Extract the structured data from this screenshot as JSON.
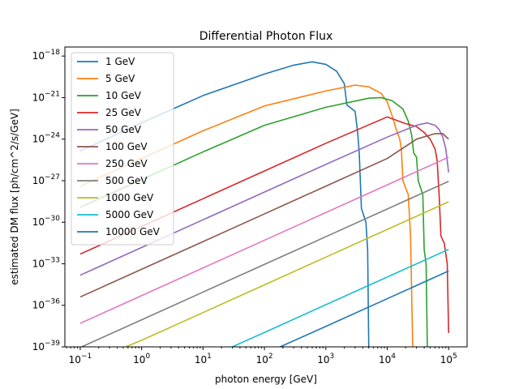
{
  "chart_data": {
    "type": "line",
    "title": "Differential Photon Flux",
    "xlabel": "photon energy [GeV]",
    "ylabel": "estimated DM flux [ph/cm^2/s/GeV]",
    "xscale": "log",
    "yscale": "log",
    "xlim": [
      0.0562,
      200000
    ],
    "ylim": [
      1e-39,
      4.5e-18
    ],
    "grid": false,
    "legend_position": "top-left",
    "x_ticks": [
      {
        "value": 0.1,
        "base": "10",
        "exp": "−1"
      },
      {
        "value": 1,
        "base": "10",
        "exp": "0"
      },
      {
        "value": 10,
        "base": "10",
        "exp": "1"
      },
      {
        "value": 100,
        "base": "10",
        "exp": "2"
      },
      {
        "value": 1000,
        "base": "10",
        "exp": "3"
      },
      {
        "value": 10000,
        "base": "10",
        "exp": "4"
      },
      {
        "value": 100000,
        "base": "10",
        "exp": "5"
      }
    ],
    "y_ticks": [
      {
        "value": 1e-39,
        "base": "10",
        "exp": "−39"
      },
      {
        "value": 1e-36,
        "base": "10",
        "exp": "−36"
      },
      {
        "value": 1e-33,
        "base": "10",
        "exp": "−33"
      },
      {
        "value": 1e-30,
        "base": "10",
        "exp": "−30"
      },
      {
        "value": 1e-27,
        "base": "10",
        "exp": "−27"
      },
      {
        "value": 1e-24,
        "base": "10",
        "exp": "−24"
      },
      {
        "value": 1e-21,
        "base": "10",
        "exp": "−21"
      },
      {
        "value": 1e-18,
        "base": "10",
        "exp": "−18"
      }
    ],
    "series": [
      {
        "name": "1 GeV",
        "color": "#1f77b4",
        "points": [
          [
            0.1,
            1.4e-25
          ],
          [
            1,
            1.5e-23
          ],
          [
            10,
            1.4e-21
          ],
          [
            100,
            5e-20
          ],
          [
            300,
            2.2e-19
          ],
          [
            600,
            3.8e-19
          ],
          [
            1000,
            2.5e-19
          ],
          [
            1500,
            8e-20
          ],
          [
            2000,
            1e-20
          ],
          [
            2200,
            3e-22
          ],
          [
            3000,
            1e-22
          ],
          [
            3300,
            3e-24
          ],
          [
            3500,
            1e-25
          ],
          [
            3800,
            1e-29
          ],
          [
            4500,
            1e-30
          ],
          [
            4800,
            1e-32
          ],
          [
            5000,
            1e-39
          ]
        ]
      },
      {
        "name": "5 GeV",
        "color": "#ff7f0e",
        "points": [
          [
            0.1,
            4e-28
          ],
          [
            1,
            4e-26
          ],
          [
            10,
            4e-24
          ],
          [
            100,
            2.5e-22
          ],
          [
            1000,
            3e-21
          ],
          [
            3000,
            8e-21
          ],
          [
            5000,
            6e-21
          ],
          [
            8000,
            2e-21
          ],
          [
            10000,
            5e-22
          ],
          [
            12000,
            5e-23
          ],
          [
            14000,
            5e-24
          ],
          [
            16000,
            1e-24
          ],
          [
            17000,
            2e-25
          ],
          [
            18000,
            1e-27
          ],
          [
            22000,
            1e-28
          ],
          [
            24000,
            1e-31
          ],
          [
            26000,
            1e-39
          ]
        ]
      },
      {
        "name": "10 GeV",
        "color": "#2ca02c",
        "points": [
          [
            0.1,
            1.2e-29
          ],
          [
            1,
            1.2e-27
          ],
          [
            10,
            1.2e-25
          ],
          [
            100,
            1e-23
          ],
          [
            1000,
            2e-22
          ],
          [
            5000,
            9e-22
          ],
          [
            8000,
            1e-21
          ],
          [
            12000,
            6e-22
          ],
          [
            18000,
            1.5e-22
          ],
          [
            22000,
            2e-23
          ],
          [
            25000,
            2e-24
          ],
          [
            27000,
            1e-25
          ],
          [
            30000,
            5e-26
          ],
          [
            32000,
            1e-27
          ],
          [
            38000,
            1e-28
          ],
          [
            40000,
            1e-32
          ],
          [
            43000,
            1e-33
          ],
          [
            45000,
            1e-39
          ]
        ]
      },
      {
        "name": "25 GeV",
        "color": "#d62728",
        "points": [
          [
            0.1,
            5e-33
          ],
          [
            1,
            5e-31
          ],
          [
            10,
            5e-29
          ],
          [
            100,
            5e-27
          ],
          [
            1000,
            5e-25
          ],
          [
            10000,
            4e-23
          ],
          [
            20000,
            1.3e-23
          ],
          [
            22000,
            1.2e-23
          ],
          [
            30000,
            8e-24
          ],
          [
            40000,
            3e-24
          ],
          [
            50000,
            1e-24
          ],
          [
            60000,
            2e-25
          ],
          [
            65000,
            3e-26
          ],
          [
            70000,
            1e-28
          ],
          [
            75000,
            1e-31
          ],
          [
            85000,
            3e-32
          ],
          [
            95000,
            1e-33
          ],
          [
            100000,
            1e-38
          ]
        ]
      },
      {
        "name": "50 GeV",
        "color": "#9467bd",
        "points": [
          [
            0.1,
            1.5e-34
          ],
          [
            1,
            1.5e-32
          ],
          [
            10,
            1.5e-30
          ],
          [
            100,
            1.5e-28
          ],
          [
            1000,
            1.5e-26
          ],
          [
            10000,
            1.4e-24
          ],
          [
            30000,
            1e-23
          ],
          [
            45000,
            1.5e-23
          ],
          [
            60000,
            1e-23
          ],
          [
            70000,
            5e-24
          ],
          [
            80000,
            1.5e-24
          ],
          [
            90000,
            2e-25
          ],
          [
            100000,
            4e-27
          ]
        ]
      },
      {
        "name": "100 GeV",
        "color": "#8c564b",
        "points": [
          [
            0.1,
            4e-36
          ],
          [
            1,
            4e-34
          ],
          [
            10,
            4e-32
          ],
          [
            100,
            4e-30
          ],
          [
            1000,
            4e-28
          ],
          [
            10000,
            4e-26
          ],
          [
            30000,
            1e-24
          ],
          [
            60000,
            2.5e-24
          ],
          [
            80000,
            2.5e-24
          ],
          [
            100000,
            1e-24
          ]
        ]
      },
      {
        "name": "250 GeV",
        "color": "#e377c2",
        "points": [
          [
            0.1,
            5e-38
          ],
          [
            1,
            5e-36
          ],
          [
            10,
            5e-34
          ],
          [
            100,
            5e-32
          ],
          [
            1000,
            5e-30
          ],
          [
            10000,
            5e-28
          ],
          [
            100000,
            5e-26
          ]
        ]
      },
      {
        "name": "500 GeV",
        "color": "#7f7f7f",
        "points": [
          [
            0.1,
            9e-40
          ],
          [
            1,
            9e-38
          ],
          [
            10,
            9e-36
          ],
          [
            100,
            9e-34
          ],
          [
            1000,
            9e-32
          ],
          [
            10000,
            9e-30
          ],
          [
            100000,
            9e-28
          ]
        ]
      },
      {
        "name": "1000 GeV",
        "color": "#bcbd22",
        "points": [
          [
            0.55,
            1e-39
          ],
          [
            1,
            3e-39
          ],
          [
            10,
            3e-37
          ],
          [
            100,
            3e-35
          ],
          [
            1000,
            3e-33
          ],
          [
            10000,
            3e-31
          ],
          [
            100000,
            3e-29
          ]
        ]
      },
      {
        "name": "5000 GeV",
        "color": "#17becf",
        "points": [
          [
            30,
            1e-39
          ],
          [
            100,
            1.1e-38
          ],
          [
            1000,
            1.1e-36
          ],
          [
            10000,
            1.1e-34
          ],
          [
            100000,
            1.1e-32
          ]
        ]
      },
      {
        "name": "10000 GeV",
        "color": "#1f77b4",
        "points": [
          [
            180,
            1e-39
          ],
          [
            1000,
            3e-38
          ],
          [
            10000,
            3e-36
          ],
          [
            100000,
            3e-34
          ]
        ]
      }
    ]
  }
}
